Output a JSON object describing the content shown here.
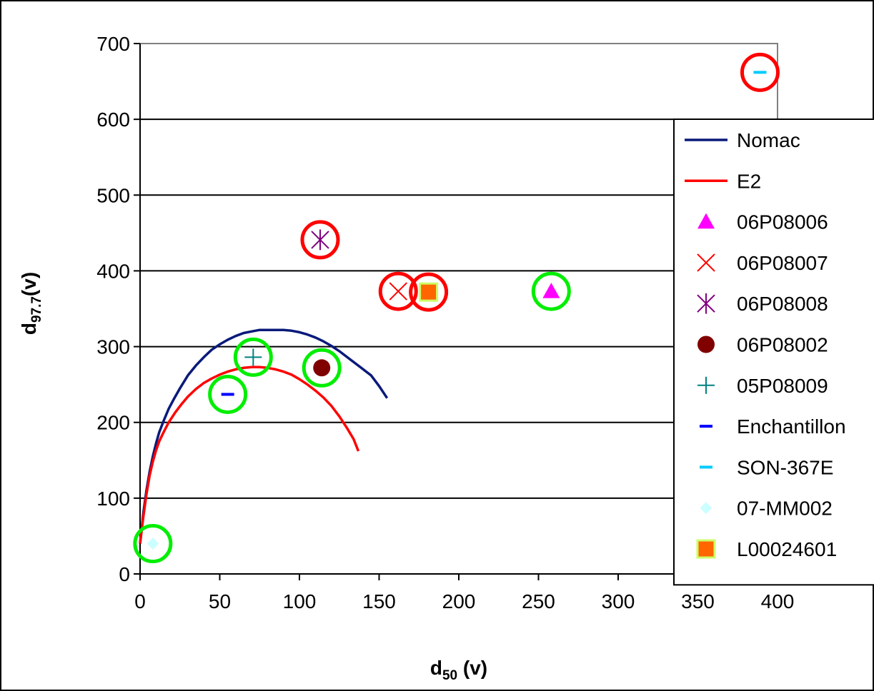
{
  "chart_data": {
    "type": "scatter",
    "xlabel": "d",
    "xlabel_sub": "50",
    "xlabel_suffix": " (v)",
    "ylabel": "d",
    "ylabel_sub": "97.7",
    "ylabel_suffix": "(v)",
    "xlim": [
      0,
      400
    ],
    "ylim": [
      0,
      700
    ],
    "xticks": [
      0,
      50,
      100,
      150,
      200,
      250,
      300,
      350,
      400
    ],
    "yticks": [
      0,
      100,
      200,
      300,
      400,
      500,
      600,
      700
    ],
    "grid": "horizontal",
    "legend_position": "right",
    "series": [
      {
        "name": "Nomac",
        "kind": "line",
        "color": "#0a1a7a",
        "x": [
          0,
          2,
          4,
          6,
          8,
          10,
          12,
          15,
          18,
          21,
          25,
          30,
          35,
          40,
          45,
          50,
          55,
          60,
          65,
          70,
          75,
          80,
          85,
          90,
          95,
          100,
          105,
          110,
          115,
          120,
          125,
          130,
          135,
          140,
          145,
          150,
          155
        ],
        "y": [
          40,
          80,
          110,
          135,
          155,
          172,
          187,
          203,
          218,
          230,
          245,
          262,
          275,
          286,
          296,
          303,
          309,
          314,
          318,
          320,
          322,
          322,
          322,
          322,
          321,
          319,
          316,
          312,
          307,
          301,
          294,
          286,
          278,
          270,
          262,
          248,
          232
        ]
      },
      {
        "name": "E2",
        "kind": "line",
        "color": "#ff0000",
        "x": [
          0,
          2,
          4,
          6,
          8,
          10,
          12,
          15,
          18,
          22,
          26,
          30,
          35,
          40,
          45,
          50,
          55,
          60,
          65,
          70,
          75,
          80,
          85,
          90,
          95,
          100,
          105,
          110,
          115,
          120,
          125,
          130,
          134,
          137
        ],
        "y": [
          40,
          75,
          105,
          130,
          148,
          163,
          175,
          188,
          200,
          213,
          224,
          234,
          244,
          252,
          258,
          263,
          267,
          270,
          272,
          273,
          273,
          272,
          270,
          267,
          263,
          257,
          250,
          242,
          233,
          222,
          208,
          192,
          178,
          162
        ]
      },
      {
        "name": "06P08006",
        "kind": "marker",
        "marker": "triangle",
        "color": "#ff00ff",
        "x": [
          258
        ],
        "y": [
          373
        ],
        "ring": "#00ee00"
      },
      {
        "name": "06P08007",
        "kind": "marker",
        "marker": "x",
        "color": "#ff0000",
        "x": [
          162
        ],
        "y": [
          373
        ],
        "ring": "#ff0000"
      },
      {
        "name": "06P08008",
        "kind": "marker",
        "marker": "star",
        "color": "#800080",
        "x": [
          113
        ],
        "y": [
          441
        ],
        "ring": "#ff0000"
      },
      {
        "name": "06P08002",
        "kind": "marker",
        "marker": "circle",
        "color": "#800000",
        "x": [
          114
        ],
        "y": [
          272
        ],
        "ring": "#00ee00"
      },
      {
        "name": "05P08009",
        "kind": "marker",
        "marker": "plus",
        "color": "#008080",
        "x": [
          71
        ],
        "y": [
          286
        ],
        "ring": "#00ee00"
      },
      {
        "name": "Enchantillon",
        "kind": "marker",
        "marker": "dash",
        "color": "#0000ff",
        "x": [
          55
        ],
        "y": [
          237
        ],
        "ring": "#00ee00"
      },
      {
        "name": "SON-367E",
        "kind": "marker",
        "marker": "dash",
        "color": "#00ccff",
        "x": [
          389
        ],
        "y": [
          662
        ],
        "ring": "#ff0000"
      },
      {
        "name": "07-MM002",
        "kind": "marker",
        "marker": "diamond",
        "color": "#ccffff",
        "x": [
          8
        ],
        "y": [
          40
        ],
        "ring": "#00ee00"
      },
      {
        "name": "L00024601",
        "kind": "marker",
        "marker": "square",
        "color": "#ff6600",
        "edge": "#ccff66",
        "x": [
          181
        ],
        "y": [
          372
        ],
        "ring": "#ff0000"
      }
    ]
  }
}
